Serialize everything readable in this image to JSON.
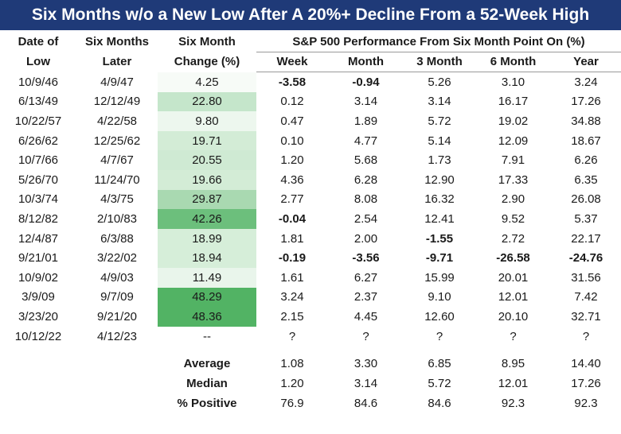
{
  "title": "Six Months w/o a New Low After A 20%+ Decline From a 52-Week High",
  "headers": {
    "date_low_1": "Date of",
    "date_low_2": "Low",
    "six_later_1": "Six Months",
    "six_later_2": "Later",
    "change_1": "Six Month",
    "change_2": "Change (%)",
    "perf_group": "S&P 500 Performance From Six Month Point On (%)",
    "week": "Week",
    "month": "Month",
    "m3": "3 Month",
    "m6": "6 Month",
    "year": "Year"
  },
  "rows": [
    {
      "low": "10/9/46",
      "later": "4/9/47",
      "change": "4.25",
      "shade": "#f7fbf7",
      "week": "-3.58",
      "month": "-0.94",
      "m3": "5.26",
      "m6": "3.10",
      "year": "3.24"
    },
    {
      "low": "6/13/49",
      "later": "12/12/49",
      "change": "22.80",
      "shade": "#c5e6cb",
      "week": "0.12",
      "month": "3.14",
      "m3": "3.14",
      "m6": "16.17",
      "year": "17.26"
    },
    {
      "low": "10/22/57",
      "later": "4/22/58",
      "change": "9.80",
      "shade": "#edf7ee",
      "week": "0.47",
      "month": "1.89",
      "m3": "5.72",
      "m6": "19.02",
      "year": "34.88"
    },
    {
      "low": "6/26/62",
      "later": "12/25/62",
      "change": "19.71",
      "shade": "#d3ecd6",
      "week": "0.10",
      "month": "4.77",
      "m3": "5.14",
      "m6": "12.09",
      "year": "18.67"
    },
    {
      "low": "10/7/66",
      "later": "4/7/67",
      "change": "20.55",
      "shade": "#cfeAd3",
      "week": "1.20",
      "month": "5.68",
      "m3": "1.73",
      "m6": "7.91",
      "year": "6.26"
    },
    {
      "low": "5/26/70",
      "later": "11/24/70",
      "change": "19.66",
      "shade": "#d3ecd6",
      "week": "4.36",
      "month": "6.28",
      "m3": "12.90",
      "m6": "17.33",
      "year": "6.35"
    },
    {
      "low": "10/3/74",
      "later": "4/3/75",
      "change": "29.87",
      "shade": "#a9d9b1",
      "week": "2.77",
      "month": "8.08",
      "m3": "16.32",
      "m6": "2.90",
      "year": "26.08"
    },
    {
      "low": "8/12/82",
      "later": "2/10/83",
      "change": "42.26",
      "shade": "#6cbf7c",
      "week": "-0.04",
      "month": "2.54",
      "m3": "12.41",
      "m6": "9.52",
      "year": "5.37"
    },
    {
      "low": "12/4/87",
      "later": "6/3/88",
      "change": "18.99",
      "shade": "#d6eed9",
      "week": "1.81",
      "month": "2.00",
      "m3": "-1.55",
      "m6": "2.72",
      "year": "22.17"
    },
    {
      "low": "9/21/01",
      "later": "3/22/02",
      "change": "18.94",
      "shade": "#d6eed9",
      "week": "-0.19",
      "month": "-3.56",
      "m3": "-9.71",
      "m6": "-26.58",
      "year": "-24.76"
    },
    {
      "low": "10/9/02",
      "later": "4/9/03",
      "change": "11.49",
      "shade": "#e9f5eb",
      "week": "1.61",
      "month": "6.27",
      "m3": "15.99",
      "m6": "20.01",
      "year": "31.56"
    },
    {
      "low": "3/9/09",
      "later": "9/7/09",
      "change": "48.29",
      "shade": "#52b364",
      "week": "3.24",
      "month": "2.37",
      "m3": "9.10",
      "m6": "12.01",
      "year": "7.42"
    },
    {
      "low": "3/23/20",
      "later": "9/21/20",
      "change": "48.36",
      "shade": "#52b364",
      "week": "2.15",
      "month": "4.45",
      "m3": "12.60",
      "m6": "20.10",
      "year": "32.71"
    },
    {
      "low": "10/12/22",
      "later": "4/12/23",
      "change": "--",
      "shade": "#ffffff",
      "week": "?",
      "month": "?",
      "m3": "?",
      "m6": "?",
      "year": "?"
    }
  ],
  "stats": [
    {
      "label": "Average",
      "week": "1.08",
      "month": "3.30",
      "m3": "6.85",
      "m6": "8.95",
      "year": "14.40"
    },
    {
      "label": "Median",
      "week": "1.20",
      "month": "3.14",
      "m3": "5.72",
      "m6": "12.01",
      "year": "17.26"
    },
    {
      "label": "% Positive",
      "week": "76.9",
      "month": "84.6",
      "m3": "84.6",
      "m6": "92.3",
      "year": "92.3"
    }
  ],
  "colors": {
    "positive": "#28a745",
    "negative": "#e02424",
    "title_bg": "#1f3a78"
  }
}
